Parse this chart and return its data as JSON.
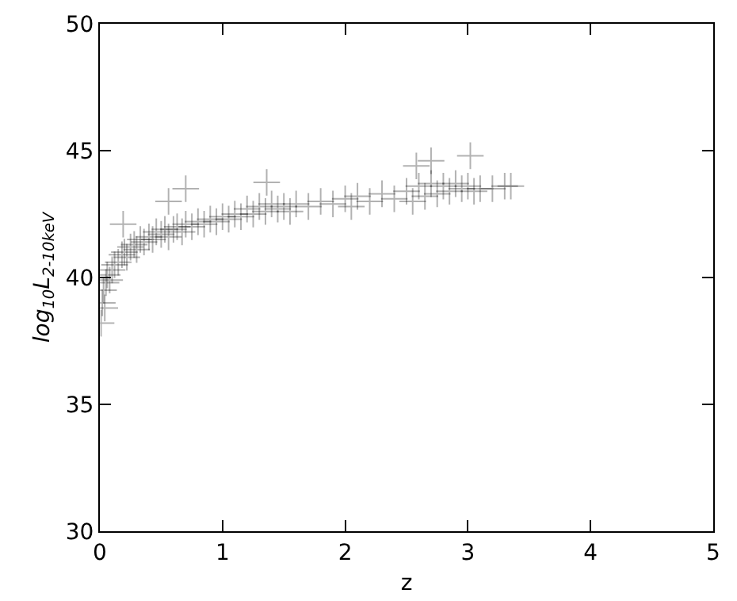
{
  "chart_data": {
    "type": "scatter",
    "xlabel": "z",
    "ylabel": "log$_{10}$L$_{2-10keV}$",
    "xlim": [
      0,
      5
    ],
    "xticks": [
      0,
      1,
      2,
      3,
      4,
      5
    ],
    "ylim": [
      30,
      50
    ],
    "yticks": [
      30,
      35,
      40,
      45,
      50
    ],
    "grid": false,
    "marker": "cross",
    "series": [
      {
        "color": "#000000",
        "x": [
          0.01,
          0.02,
          0.03,
          0.04,
          0.05,
          0.06,
          0.08,
          0.1,
          0.12,
          0.15,
          0.18,
          0.2,
          0.22,
          0.25,
          0.28,
          0.3,
          0.33,
          0.36,
          0.4,
          0.43,
          0.46,
          0.5,
          0.53,
          0.56,
          0.6,
          0.63,
          0.67,
          0.7,
          0.75,
          0.8,
          0.85,
          0.9,
          0.95,
          1.0,
          1.05,
          1.1,
          1.15,
          1.2,
          1.25,
          1.3,
          1.35,
          1.4,
          1.45,
          1.5,
          1.55,
          1.6,
          1.7,
          1.8,
          1.9,
          2.0,
          2.05,
          2.1,
          2.2,
          2.3,
          2.4,
          2.5,
          2.55,
          2.6,
          2.65,
          2.7,
          2.75,
          2.8,
          2.85,
          2.9,
          2.95,
          3.0,
          3.05,
          3.1,
          3.2,
          3.3,
          0.19,
          0.56,
          0.7,
          1.36,
          2.58,
          2.7,
          3.02,
          3.35
        ],
        "values": [
          38.2,
          39.0,
          39.5,
          38.8,
          39.8,
          40.1,
          39.9,
          40.3,
          40.5,
          40.6,
          40.9,
          41.0,
          40.8,
          41.2,
          41.3,
          41.1,
          41.5,
          41.4,
          41.6,
          41.5,
          41.8,
          41.7,
          41.9,
          41.6,
          41.9,
          42.0,
          41.8,
          42.1,
          42.0,
          42.2,
          42.1,
          42.3,
          42.2,
          42.4,
          42.3,
          42.5,
          42.4,
          42.7,
          42.5,
          42.8,
          42.6,
          42.9,
          42.7,
          42.8,
          42.6,
          42.9,
          42.8,
          43.0,
          42.9,
          43.1,
          42.8,
          43.2,
          43.0,
          43.3,
          43.1,
          43.4,
          43.0,
          43.6,
          43.2,
          43.7,
          43.3,
          43.6,
          43.4,
          43.7,
          43.5,
          43.6,
          43.4,
          43.5,
          43.5,
          43.6,
          42.1,
          43.0,
          43.5,
          43.75,
          44.4,
          44.6,
          44.8,
          43.6
        ]
      }
    ]
  }
}
